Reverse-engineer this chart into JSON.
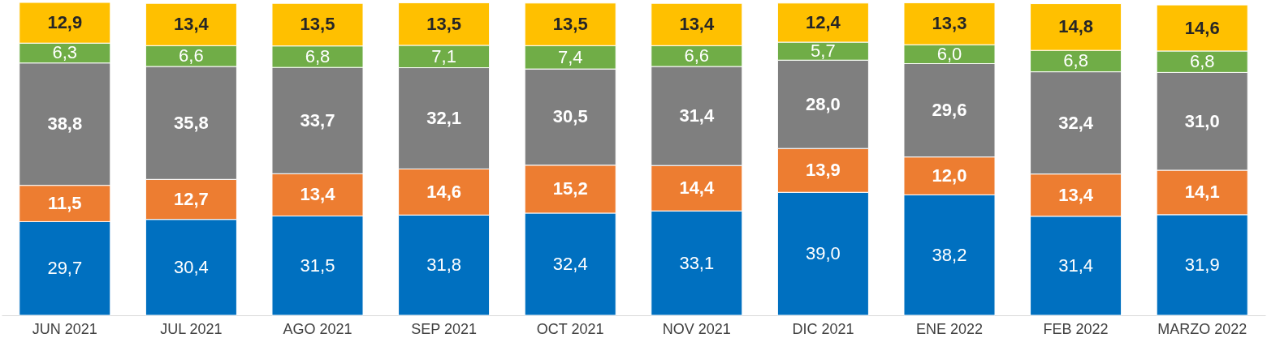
{
  "chart_data": {
    "type": "bar",
    "stacked": true,
    "tick_labels": "x",
    "categories": [
      "JUN 2021",
      "JUL 2021",
      "AGO 2021",
      "SEP 2021",
      "OCT 2021",
      "NOV 2021",
      "DIC 2021",
      "ENE 2022",
      "FEB 2022",
      "MARZO 2022"
    ],
    "series": [
      {
        "color": "#0070c0",
        "values": [
          29.7,
          30.4,
          31.5,
          31.8,
          32.4,
          33.1,
          39.0,
          38.2,
          31.4,
          31.9
        ],
        "value_labels": [
          "29,7",
          "30,4",
          "31,5",
          "31,8",
          "32,4",
          "33,1",
          "39,0",
          "38,2",
          "31,4",
          "31,9"
        ]
      },
      {
        "color": "#ed7d31",
        "values": [
          11.5,
          12.7,
          13.4,
          14.6,
          15.2,
          14.4,
          13.9,
          12.0,
          13.4,
          14.1
        ],
        "value_labels": [
          "11,5",
          "12,7",
          "13,4",
          "14,6",
          "15,2",
          "14,4",
          "13,9",
          "12,0",
          "13,4",
          "14,1"
        ]
      },
      {
        "color": "#7f7f7f",
        "values": [
          38.8,
          35.8,
          33.7,
          32.1,
          30.5,
          31.4,
          28.0,
          29.6,
          32.4,
          31.0
        ],
        "value_labels": [
          "38,8",
          "35,8",
          "33,7",
          "32,1",
          "30,5",
          "31,4",
          "28,0",
          "29,6",
          "32,4",
          "31,0"
        ]
      },
      {
        "color": "#70ad47",
        "values": [
          6.3,
          6.6,
          6.8,
          7.1,
          7.4,
          6.6,
          5.7,
          6.0,
          6.8,
          6.8
        ],
        "value_labels": [
          "6,3",
          "6,6",
          "6,8",
          "7,1",
          "7,4",
          "6,6",
          "5,7",
          "6,0",
          "6,8",
          "6,8"
        ]
      },
      {
        "color": "#ffc000",
        "values": [
          12.9,
          13.4,
          13.5,
          13.5,
          13.5,
          13.4,
          12.4,
          13.3,
          14.8,
          14.6
        ],
        "value_labels": [
          "12,9",
          "13,4",
          "13,5",
          "13,5",
          "13,5",
          "13,4",
          "12,4",
          "13,3",
          "14,8",
          "14,6"
        ]
      }
    ]
  }
}
